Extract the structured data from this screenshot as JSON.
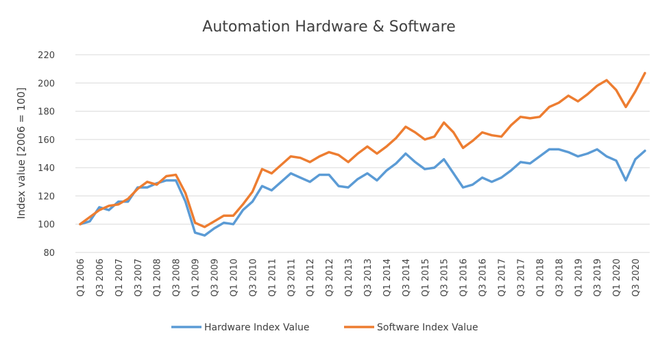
{
  "chart_data": {
    "type": "line",
    "title": "Automation Hardware & Software",
    "xlabel": "",
    "ylabel": "Index value [2006 = 100]",
    "ylim": [
      80,
      220
    ],
    "yticks": [
      80,
      100,
      120,
      140,
      160,
      180,
      200,
      220
    ],
    "grid": true,
    "legend_position": "bottom",
    "x": [
      "Q1 2006",
      "Q2 2006",
      "Q3 2006",
      "Q4 2006",
      "Q1 2007",
      "Q2 2007",
      "Q3 2007",
      "Q4 2007",
      "Q1 2008",
      "Q2 2008",
      "Q3 2008",
      "Q4 2008",
      "Q1 2009",
      "Q2 2009",
      "Q3 2009",
      "Q4 2009",
      "Q1 2010",
      "Q2 2010",
      "Q3 2010",
      "Q4 2010",
      "Q1 2011",
      "Q2 2011",
      "Q3 2011",
      "Q4 2011",
      "Q1 2012",
      "Q2 2012",
      "Q3 2012",
      "Q4 2012",
      "Q1 2013",
      "Q2 2013",
      "Q3 2013",
      "Q4 2013",
      "Q1 2014",
      "Q2 2014",
      "Q3 2014",
      "Q4 2014",
      "Q1 2015",
      "Q2 2015",
      "Q3 2015",
      "Q4 2015",
      "Q1 2016",
      "Q2 2016",
      "Q3 2016",
      "Q4 2016",
      "Q1 2017",
      "Q2 2017",
      "Q3 2017",
      "Q4 2017",
      "Q1 2018",
      "Q2 2018",
      "Q3 2018",
      "Q4 2018",
      "Q1 2019",
      "Q2 2019",
      "Q3 2019",
      "Q4 2019",
      "Q1 2020",
      "Q2 2020",
      "Q3 2020",
      "Q4 2020"
    ],
    "tick_labels": [
      "Q1 2006",
      "Q3 2006",
      "Q1 2007",
      "Q3 2007",
      "Q1 2008",
      "Q3 2008",
      "Q1 2009",
      "Q3 2009",
      "Q1 2010",
      "Q3 2010",
      "Q1 2011",
      "Q3 2011",
      "Q1 2012",
      "Q3 2012",
      "Q1 2013",
      "Q3 2013",
      "Q1 2014",
      "Q3 2014",
      "Q1 2015",
      "Q3 2015",
      "Q1 2016",
      "Q3 2016",
      "Q1 2017",
      "Q3 2017",
      "Q1 2018",
      "Q3 2018",
      "Q1 2019",
      "Q3 2019",
      "Q1 2020",
      "Q3 2020"
    ],
    "series": [
      {
        "name": "Hardware Index Value",
        "color": "#5b9bd5",
        "values": [
          100,
          102,
          112,
          110,
          116,
          116,
          126,
          126,
          129,
          131,
          131,
          116,
          94,
          92,
          97,
          101,
          100,
          110,
          116,
          127,
          124,
          130,
          136,
          133,
          130,
          135,
          135,
          127,
          126,
          132,
          136,
          131,
          138,
          143,
          150,
          144,
          139,
          140,
          146,
          136,
          126,
          128,
          133,
          130,
          133,
          138,
          144,
          143,
          148,
          153,
          153,
          151,
          148,
          150,
          153,
          148,
          145,
          131,
          146,
          152
        ]
      },
      {
        "name": "Software Index Value",
        "color": "#ed7d31",
        "values": [
          100,
          105,
          110,
          113,
          114,
          118,
          125,
          130,
          128,
          134,
          135,
          122,
          101,
          98,
          102,
          106,
          106,
          114,
          123,
          139,
          136,
          142,
          148,
          147,
          144,
          148,
          151,
          149,
          144,
          150,
          155,
          150,
          155,
          161,
          169,
          165,
          160,
          162,
          172,
          165,
          154,
          159,
          165,
          163,
          162,
          170,
          176,
          175,
          176,
          183,
          186,
          191,
          187,
          192,
          198,
          202,
          195,
          183,
          194,
          207
        ]
      }
    ]
  }
}
